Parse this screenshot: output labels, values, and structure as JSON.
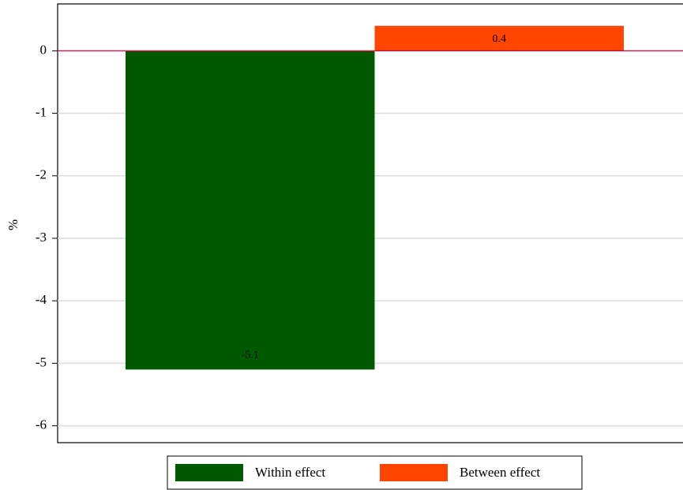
{
  "chart_data": {
    "type": "bar",
    "y_label": "%",
    "series": [
      {
        "name": "Within effect",
        "color": "#005a00",
        "values": [
          -5.1
        ]
      },
      {
        "name": "Between effect",
        "color": "#ff4500",
        "values": [
          0.4
        ]
      }
    ],
    "ylim": [
      -6.27,
      0.75
    ],
    "yticks": [
      -6,
      -5,
      -4,
      -3,
      -2,
      -1,
      0
    ],
    "grid": true,
    "zero_line_color": "#e0003c",
    "legend": "bottom"
  }
}
